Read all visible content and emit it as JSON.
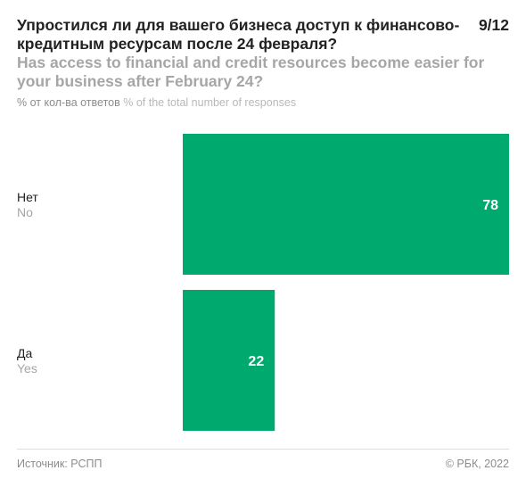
{
  "header": {
    "title_ru": "Упростился ли для вашего бизнеса доступ к финансово-кредитным ресурсам после 24 февраля?",
    "title_en": "Has access to financial and credit resources become easier for your business after February 24?",
    "pager": "9/12",
    "unit_ru": "% от кол-ва ответов",
    "unit_en": "% of the total number of responses"
  },
  "chart_data": {
    "type": "bar",
    "orientation": "horizontal",
    "categories": [
      {
        "ru": "Нет",
        "en": "No"
      },
      {
        "ru": "Да",
        "en": "Yes"
      }
    ],
    "values": [
      78,
      22
    ],
    "value_labels": [
      "78",
      "22"
    ],
    "xlim": [
      0,
      78
    ],
    "bar_color": "#00a96e",
    "grid": false,
    "legend": "none"
  },
  "footer": {
    "source": "Источник: РСПП",
    "copyright": "© РБК, 2022"
  },
  "colors": {
    "accent": "#00a96e",
    "title": "#222222",
    "subtitle": "#a6a6a6",
    "muted": "#8c8c8c"
  }
}
